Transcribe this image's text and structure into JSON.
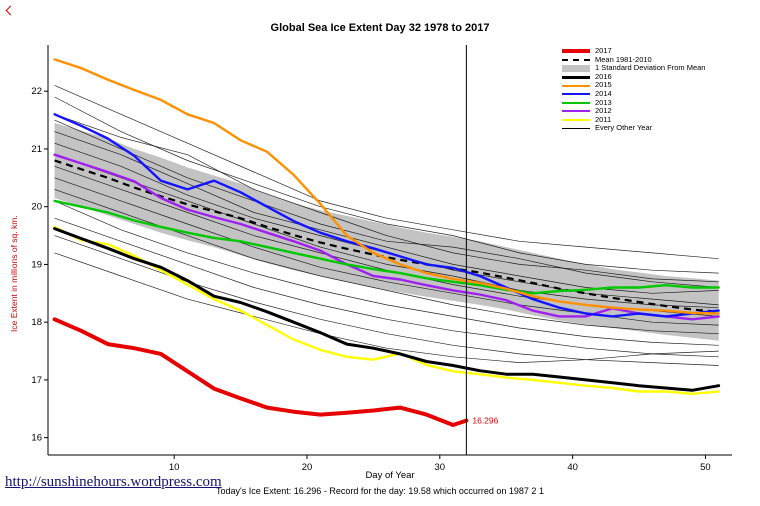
{
  "footer": {
    "link": "http://sunshinehours.wordpress.com",
    "subtitle": "Today's Ice Extent: 16.296 - Record for the day: 19.58 which occurred on 1987 2 1"
  },
  "chart_data": {
    "type": "line",
    "title": "Global Sea Ice Extent Day 32 1978 to 2017",
    "xlabel": "Day of Year",
    "ylabel": "Ice Extent in millions of sq. km.",
    "ylabel_color": "#cc0000",
    "xlim": [
      0.5,
      52
    ],
    "ylim": [
      15.7,
      22.8
    ],
    "xticks": [
      10,
      20,
      30,
      40,
      50
    ],
    "yticks": [
      16,
      17,
      18,
      19,
      20,
      21,
      22
    ],
    "grid": false,
    "legend_position": "top-right-inside",
    "vline_x": 32,
    "annotation": {
      "x": 32,
      "y": 16.296,
      "text": "16.296",
      "color": "#e60000"
    },
    "x": [
      1,
      3,
      5,
      7,
      9,
      11,
      13,
      15,
      17,
      19,
      21,
      23,
      25,
      27,
      29,
      31,
      33,
      35,
      37,
      39,
      41,
      43,
      45,
      47,
      49,
      51
    ],
    "band": {
      "name": "1 Standard Deviation From Mean",
      "color": "#c3c3c3",
      "upper": [
        21.45,
        21.32,
        21.18,
        21.0,
        20.85,
        20.68,
        20.54,
        20.4,
        20.22,
        20.06,
        19.94,
        19.84,
        19.74,
        19.64,
        19.55,
        19.48,
        19.4,
        19.3,
        19.2,
        19.1,
        19.0,
        18.92,
        18.86,
        18.8,
        18.76,
        18.72
      ],
      "lower": [
        20.15,
        20.0,
        19.85,
        19.7,
        19.55,
        19.42,
        19.3,
        19.16,
        19.02,
        18.9,
        18.8,
        18.7,
        18.6,
        18.52,
        18.44,
        18.37,
        18.3,
        18.22,
        18.12,
        18.03,
        17.96,
        17.9,
        17.84,
        17.78,
        17.73,
        17.68
      ]
    },
    "mean": {
      "name": "Mean 1981-2010",
      "color": "#000000",
      "style": "dashed",
      "values": [
        20.8,
        20.65,
        20.5,
        20.33,
        20.18,
        20.04,
        19.92,
        19.8,
        19.65,
        19.51,
        19.38,
        19.27,
        19.17,
        19.08,
        19.0,
        18.93,
        18.86,
        18.77,
        18.68,
        18.58,
        18.5,
        18.42,
        18.35,
        18.28,
        18.22,
        18.18
      ]
    },
    "series": [
      {
        "name": "2017",
        "color": "#e60000",
        "width": 4,
        "x": [
          1,
          3,
          5,
          7,
          9,
          11,
          13,
          15,
          17,
          19,
          21,
          23,
          25,
          27,
          29,
          31,
          32
        ],
        "values": [
          18.05,
          17.85,
          17.62,
          17.55,
          17.45,
          17.15,
          16.85,
          16.68,
          16.52,
          16.45,
          16.4,
          16.43,
          16.47,
          16.52,
          16.4,
          16.22,
          16.296
        ]
      },
      {
        "name": "2016",
        "color": "#000000",
        "width": 3,
        "values": [
          19.62,
          19.45,
          19.28,
          19.1,
          18.95,
          18.72,
          18.45,
          18.34,
          18.18,
          18.0,
          17.82,
          17.62,
          17.55,
          17.45,
          17.32,
          17.25,
          17.16,
          17.1,
          17.1,
          17.05,
          17.0,
          16.95,
          16.9,
          16.86,
          16.82,
          16.9
        ]
      },
      {
        "name": "2015",
        "color": "#ff9100",
        "width": 2.4,
        "values": [
          22.55,
          22.4,
          22.2,
          22.02,
          21.85,
          21.6,
          21.45,
          21.15,
          20.95,
          20.55,
          20.05,
          19.5,
          19.2,
          19.0,
          18.85,
          18.75,
          18.68,
          18.58,
          18.45,
          18.36,
          18.3,
          18.25,
          18.22,
          18.2,
          18.16,
          18.15
        ]
      },
      {
        "name": "2014",
        "color": "#1414ff",
        "width": 2.4,
        "values": [
          21.6,
          21.4,
          21.18,
          20.88,
          20.45,
          20.3,
          20.45,
          20.25,
          20.0,
          19.75,
          19.55,
          19.4,
          19.28,
          19.14,
          19.0,
          18.94,
          18.8,
          18.6,
          18.4,
          18.25,
          18.15,
          18.1,
          18.15,
          18.1,
          18.15,
          18.2
        ]
      },
      {
        "name": "2013",
        "color": "#00c800",
        "width": 2.4,
        "values": [
          20.1,
          20.0,
          19.9,
          19.76,
          19.65,
          19.55,
          19.46,
          19.4,
          19.3,
          19.2,
          19.1,
          19.0,
          18.92,
          18.85,
          18.76,
          18.7,
          18.64,
          18.56,
          18.5,
          18.54,
          18.56,
          18.6,
          18.6,
          18.64,
          18.6,
          18.6
        ]
      },
      {
        "name": "2012",
        "color": "#a020f0",
        "width": 2.4,
        "values": [
          20.9,
          20.75,
          20.6,
          20.44,
          20.15,
          19.95,
          19.82,
          19.7,
          19.55,
          19.4,
          19.24,
          19.0,
          18.8,
          18.74,
          18.64,
          18.55,
          18.48,
          18.38,
          18.2,
          18.1,
          18.1,
          18.24,
          18.15,
          18.1,
          18.05,
          18.1
        ]
      },
      {
        "name": "2011",
        "color": "#ffff00",
        "width": 2.4,
        "values": [
          19.65,
          19.42,
          19.35,
          19.15,
          18.9,
          18.65,
          18.4,
          18.2,
          17.95,
          17.7,
          17.52,
          17.4,
          17.35,
          17.46,
          17.26,
          17.15,
          17.1,
          17.04,
          17.0,
          16.95,
          16.9,
          16.86,
          16.8,
          16.8,
          16.76,
          16.8
        ]
      }
    ],
    "background_series": {
      "name": "Every Other Year",
      "color": "#000000",
      "width": 0.7,
      "x": [
        1,
        6,
        11,
        16,
        21,
        26,
        31,
        36,
        41,
        46,
        51
      ],
      "lines": [
        [
          22.1,
          21.6,
          21.1,
          20.6,
          20.1,
          19.8,
          19.6,
          19.4,
          19.3,
          19.2,
          19.1
        ],
        [
          21.9,
          21.3,
          20.8,
          20.4,
          20.0,
          19.7,
          19.5,
          19.2,
          19.0,
          18.9,
          18.85
        ],
        [
          21.6,
          21.2,
          20.9,
          20.3,
          19.9,
          19.5,
          19.2,
          19.0,
          18.9,
          18.75,
          18.7
        ],
        [
          21.5,
          21.0,
          20.5,
          20.1,
          19.7,
          19.4,
          19.3,
          19.1,
          18.85,
          18.7,
          18.6
        ],
        [
          21.3,
          20.9,
          20.4,
          19.9,
          19.6,
          19.3,
          19.0,
          18.8,
          18.6,
          18.5,
          18.55
        ],
        [
          21.1,
          20.7,
          20.2,
          19.8,
          19.5,
          19.2,
          18.9,
          18.7,
          18.5,
          18.4,
          18.3
        ],
        [
          20.9,
          20.5,
          20.1,
          19.7,
          19.3,
          19.0,
          18.8,
          18.55,
          18.4,
          18.3,
          18.25
        ],
        [
          20.7,
          20.3,
          19.9,
          19.5,
          19.2,
          18.9,
          18.65,
          18.45,
          18.3,
          18.2,
          18.1
        ],
        [
          20.5,
          20.1,
          19.7,
          19.3,
          18.95,
          18.7,
          18.5,
          18.3,
          18.15,
          18.0,
          17.95
        ],
        [
          20.3,
          19.9,
          19.5,
          19.1,
          18.8,
          18.55,
          18.3,
          18.1,
          17.95,
          17.85,
          17.8
        ],
        [
          20.1,
          19.6,
          19.2,
          18.85,
          18.55,
          18.3,
          18.1,
          17.9,
          17.75,
          17.65,
          17.6
        ],
        [
          19.8,
          19.4,
          19.0,
          18.6,
          18.3,
          18.05,
          17.85,
          17.7,
          17.55,
          17.45,
          17.5
        ],
        [
          19.5,
          19.1,
          18.7,
          18.35,
          18.05,
          17.8,
          17.6,
          17.45,
          17.35,
          17.3,
          17.25
        ],
        [
          19.2,
          18.8,
          18.4,
          18.1,
          17.8,
          17.55,
          17.4,
          17.3,
          17.35,
          17.45,
          17.4
        ]
      ]
    },
    "legend": [
      {
        "label": "2017",
        "swatch": "line",
        "color": "#e60000",
        "thickness": 4
      },
      {
        "label": "Mean 1981-2010",
        "swatch": "dashed",
        "color": "#000000",
        "thickness": 2
      },
      {
        "label": "1 Standard Deviation From Mean",
        "swatch": "box",
        "color": "#c3c3c3",
        "thickness": 7
      },
      {
        "label": "2016",
        "swatch": "line",
        "color": "#000000",
        "thickness": 3
      },
      {
        "label": "2015",
        "swatch": "line",
        "color": "#ff9100",
        "thickness": 2
      },
      {
        "label": "2014",
        "swatch": "line",
        "color": "#1414ff",
        "thickness": 2
      },
      {
        "label": "2013",
        "swatch": "line",
        "color": "#00c800",
        "thickness": 2
      },
      {
        "label": "2012",
        "swatch": "line",
        "color": "#a020f0",
        "thickness": 2
      },
      {
        "label": "2011",
        "swatch": "line",
        "color": "#ffff00",
        "thickness": 2
      },
      {
        "label": "Every Other Year",
        "swatch": "line",
        "color": "#000000",
        "thickness": 1
      }
    ]
  }
}
